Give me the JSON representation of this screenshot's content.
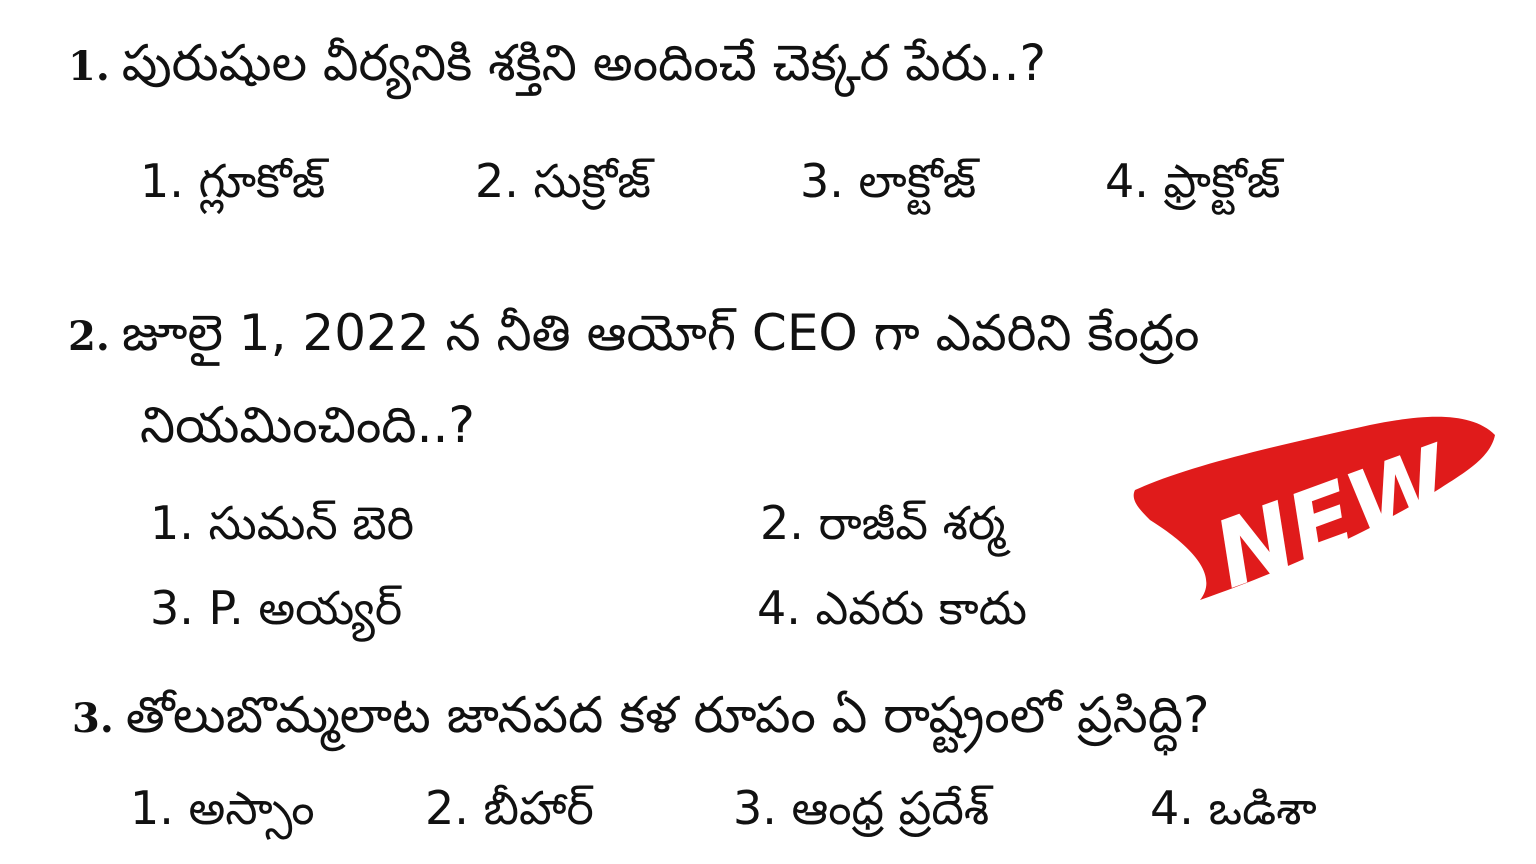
{
  "questions": [
    {
      "number": "1.",
      "text": "పురుషుల వీర్యనికి శక్తిని అందించే చెక్కర పేరు..?",
      "options": [
        "1. గ్లూకోజ్",
        "2. సుక్రోజ్",
        "3. లాక్టోజ్",
        "4. ఫ్రాక్టోజ్"
      ]
    },
    {
      "number": "2.",
      "text": "జూలై 1, 2022 న నీతి ఆయోగ్ CEO గా ఎవరిని కేంద్రం",
      "text_cont": "నియమించింది..?",
      "options": [
        "1. సుమన్ బెరి",
        "2. రాజీవ్ శర్మ",
        "3. P. అయ్యర్",
        "4. ఎవరు కాదు"
      ]
    },
    {
      "number": "3.",
      "text": "తోలుబొమ్మలాట జానపద కళ రూపం ఏ రాష్ట్రంలో ప్రసిద్ధి?",
      "options": [
        "1. అస్సాం",
        "2. బీహార్",
        "3. ఆంధ్ర ప్రదేశ్",
        "4. ఒడిశా"
      ]
    }
  ],
  "badge": {
    "text": "NEW",
    "color": "#e01b1b"
  }
}
